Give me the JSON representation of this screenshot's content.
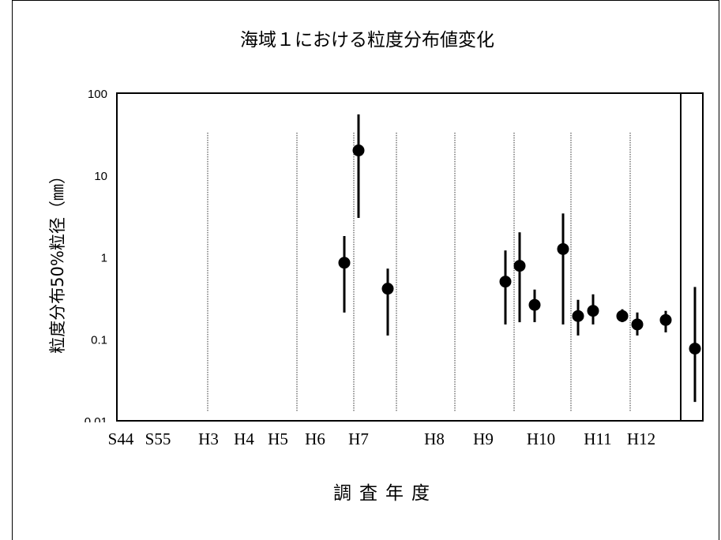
{
  "chart_data": {
    "type": "scatter",
    "title": "海域１における粒度分布値変化",
    "xlabel": "調査年度",
    "ylabel": "粒度分布50%粒径（㎜）",
    "yscale": "log",
    "ylim": [
      0.01,
      100
    ],
    "yticks": [
      "100",
      "10",
      "1",
      "0.1",
      "0.01"
    ],
    "grid": false,
    "categories": [
      "S44",
      "S55",
      "H3",
      "H4",
      "H5",
      "H6",
      "H7",
      "H8",
      "H9",
      "H10",
      "H11",
      "H12"
    ],
    "points": [
      {
        "category": "H7",
        "value": 0.85,
        "min": 0.21,
        "max": 1.8
      },
      {
        "category": "H7",
        "value": 20.0,
        "min": 3.0,
        "max": 55.0
      },
      {
        "category": "H7",
        "value": 0.41,
        "min": 0.11,
        "max": 0.72
      },
      {
        "category": "H9",
        "value": 0.5,
        "min": 0.15,
        "max": 1.2
      },
      {
        "category": "H10",
        "value": 0.78,
        "min": 0.16,
        "max": 2.0
      },
      {
        "category": "H10",
        "value": 0.26,
        "min": 0.16,
        "max": 0.4
      },
      {
        "category": "H10",
        "value": 1.25,
        "min": 0.15,
        "max": 3.4
      },
      {
        "category": "H11",
        "value": 0.19,
        "min": 0.11,
        "max": 0.3
      },
      {
        "category": "H11",
        "value": 0.22,
        "min": 0.15,
        "max": 0.35
      },
      {
        "category": "H11",
        "value": 0.19,
        "min": 0.16,
        "max": 0.23
      },
      {
        "category": "H12",
        "value": 0.15,
        "min": 0.11,
        "max": 0.21
      },
      {
        "category": "H12",
        "value": 0.17,
        "min": 0.12,
        "max": 0.22
      },
      {
        "category": "H12",
        "value": 0.076,
        "min": 0.017,
        "max": 0.43
      }
    ]
  }
}
